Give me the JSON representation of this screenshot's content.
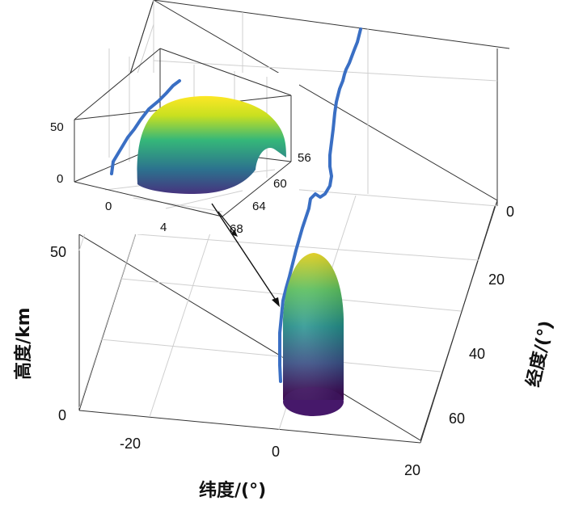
{
  "chart_data": [
    {
      "type": "surface3d",
      "title": "",
      "xlabel": "纬度/(°)",
      "ylabel": "经度/(°)",
      "zlabel": "高度/km",
      "x_ticks": [
        "-20",
        "0",
        "20"
      ],
      "y_ticks": [
        "0",
        "20",
        "40",
        "60"
      ],
      "z_ticks": [
        "0",
        "50"
      ],
      "grid": true,
      "colormap": [
        "#440154",
        "#3b528b",
        "#21918c",
        "#5ec962",
        "#fde725"
      ],
      "line_color": "#3a6fc4",
      "objects": [
        {
          "name": "",
          "shape": "bullet-dome",
          "center_lat": 8,
          "center_lon": 45,
          "height_km": 42
        },
        {
          "name": "",
          "shape": "track-line",
          "alt_km": [
            0,
            5,
            15,
            25,
            35,
            45,
            55,
            65
          ]
        }
      ]
    },
    {
      "type": "surface3d",
      "inset": true,
      "title": "",
      "x_ticks": [
        "0",
        "4"
      ],
      "y_ticks": [
        "56",
        "60",
        "64",
        "68"
      ],
      "z_ticks": [
        "0",
        "50"
      ],
      "grid": true,
      "objects": [
        {
          "name": "",
          "shape": "dome",
          "height_km": 55
        },
        {
          "name": "",
          "shape": "track-line"
        }
      ]
    }
  ]
}
